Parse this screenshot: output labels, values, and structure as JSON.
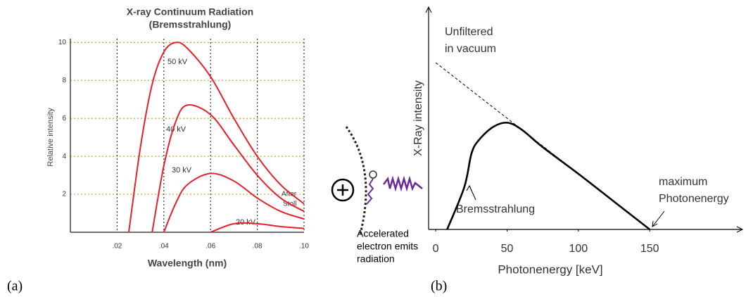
{
  "chart_data": [
    {
      "type": "line",
      "title": "X-ray Continuum Radiation",
      "subtitle": "(Bremsstrahlung)",
      "xlabel": "Wavelength (nm)",
      "ylabel": "Relative intensity",
      "x": [
        0.025,
        0.03,
        0.035,
        0.04,
        0.045,
        0.05,
        0.06,
        0.07,
        0.08,
        0.09,
        0.1
      ],
      "series": [
        {
          "name": "50 kV",
          "color": "#e8202a",
          "values": [
            0,
            4.5,
            7.8,
            9.5,
            10,
            9.7,
            8.2,
            6,
            4,
            2.5,
            1.5
          ]
        },
        {
          "name": "40 kV",
          "color": "#e8202a",
          "values": [
            null,
            null,
            0,
            3.5,
            5.8,
            6.7,
            6.2,
            4.6,
            3,
            1.8,
            1.1
          ]
        },
        {
          "name": "30 kV",
          "color": "#e8202a",
          "values": [
            null,
            null,
            null,
            0,
            1.5,
            2.5,
            3.1,
            2.7,
            1.8,
            1.1,
            0.7
          ]
        },
        {
          "name": "20 kV",
          "color": "#e8202a",
          "values": [
            null,
            null,
            null,
            null,
            null,
            null,
            0,
            0.45,
            0.45,
            0.3,
            0.2
          ]
        }
      ],
      "xlim": [
        0,
        0.1
      ],
      "ylim": [
        0,
        10.2
      ],
      "xticks": [
        {
          "value": 0.02,
          "label": ".02"
        },
        {
          "value": 0.04,
          "label": ".04"
        },
        {
          "value": 0.06,
          "label": ".06"
        },
        {
          "value": 0.08,
          "label": ".08"
        },
        {
          "value": 0.1,
          "label": ".10"
        }
      ],
      "yticks": [
        2,
        4,
        6,
        8,
        10
      ],
      "grid": true,
      "annotations": [
        "After",
        "Stoll"
      ]
    },
    {
      "type": "line",
      "xlabel": "Photonenergy [keV]",
      "ylabel": "X-Ray intensity",
      "series": [
        {
          "color": "#000000",
          "line_style": "dashed",
          "x": [
            0,
            150
          ],
          "values": [
            75,
            0
          ]
        },
        {
          "color": "#000000",
          "line_style": "solid",
          "x": [
            8,
            20,
            25,
            30,
            40,
            50,
            60,
            75,
            100,
            125,
            150
          ],
          "values": [
            0,
            19,
            34,
            40,
            46,
            48,
            45,
            37,
            25,
            12.5,
            0
          ]
        }
      ],
      "xlim": [
        -5,
        215
      ],
      "ylim": [
        0,
        100
      ],
      "xticks": [
        0,
        50,
        100,
        150
      ],
      "annotations": [
        "Unfiltered",
        "in vacuum",
        "Bremsstrahlung",
        "maximum",
        "Photonenergy"
      ]
    }
  ],
  "captions": [
    "(a)",
    "(b)"
  ],
  "diagram": {
    "label_lines": [
      "Accelerated",
      "electron emits",
      "radiation"
    ]
  }
}
